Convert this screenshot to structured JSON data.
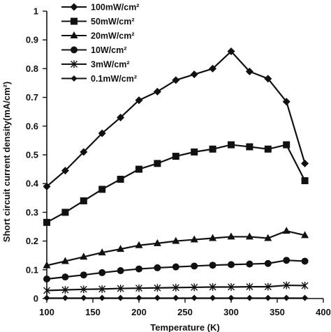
{
  "chart_data": {
    "type": "line",
    "title": "",
    "xlabel": "Temperature (K)",
    "ylabel": "Short circuit current density(mA/cm²)",
    "xlim": [
      100,
      400
    ],
    "ylim": [
      0,
      1
    ],
    "xticks": [
      100,
      150,
      200,
      250,
      300,
      350,
      400
    ],
    "xtick_labels": [
      "100",
      "150",
      "200",
      "250",
      "300",
      "350",
      "400"
    ],
    "yticks": [
      0,
      0.1,
      0.2,
      0.3,
      0.4,
      0.5,
      0.6,
      0.7,
      0.8,
      0.9,
      1
    ],
    "ytick_labels": [
      "0",
      "0.1",
      "0.2",
      "0.3",
      "0.4",
      "0.5",
      "0.6",
      "0.7",
      "0.8",
      "0.9",
      "1"
    ],
    "grid": false,
    "legend_position": "top-left",
    "line_color": "#111111",
    "series": [
      {
        "name": "100mW/cm²",
        "marker": "diamond",
        "x": [
          100,
          120,
          140,
          160,
          180,
          200,
          220,
          240,
          260,
          280,
          300,
          320,
          340,
          360,
          380
        ],
        "y": [
          0.39,
          0.445,
          0.51,
          0.575,
          0.63,
          0.69,
          0.72,
          0.76,
          0.78,
          0.8,
          0.86,
          0.79,
          0.765,
          0.685,
          0.47
        ]
      },
      {
        "name": "50mW/cm²",
        "marker": "square",
        "x": [
          100,
          120,
          140,
          160,
          180,
          200,
          220,
          240,
          260,
          280,
          300,
          320,
          340,
          360,
          380
        ],
        "y": [
          0.265,
          0.3,
          0.34,
          0.38,
          0.415,
          0.45,
          0.47,
          0.495,
          0.51,
          0.52,
          0.535,
          0.528,
          0.52,
          0.535,
          0.41
        ]
      },
      {
        "name": "20mW/cm²",
        "marker": "triangle",
        "x": [
          100,
          120,
          140,
          160,
          180,
          200,
          220,
          240,
          260,
          280,
          300,
          320,
          340,
          360,
          380
        ],
        "y": [
          0.115,
          0.13,
          0.145,
          0.16,
          0.172,
          0.185,
          0.192,
          0.2,
          0.205,
          0.21,
          0.215,
          0.215,
          0.21,
          0.235,
          0.22
        ]
      },
      {
        "name": "10W/cm²",
        "marker": "circle",
        "x": [
          100,
          120,
          140,
          160,
          180,
          200,
          220,
          240,
          260,
          280,
          300,
          320,
          340,
          360,
          380
        ],
        "y": [
          0.068,
          0.075,
          0.082,
          0.09,
          0.097,
          0.103,
          0.107,
          0.11,
          0.113,
          0.116,
          0.118,
          0.12,
          0.122,
          0.133,
          0.13
        ]
      },
      {
        "name": "3mW/cm²",
        "marker": "asterisk",
        "x": [
          100,
          120,
          140,
          160,
          180,
          200,
          220,
          240,
          260,
          280,
          300,
          320,
          340,
          360,
          380
        ],
        "y": [
          0.028,
          0.03,
          0.032,
          0.033,
          0.035,
          0.036,
          0.037,
          0.038,
          0.039,
          0.04,
          0.04,
          0.041,
          0.041,
          0.046,
          0.045
        ]
      },
      {
        "name": "0.1mW/cm²",
        "marker": "diamond-small",
        "x": [
          100,
          120,
          140,
          160,
          180,
          200,
          220,
          240,
          260,
          280,
          300,
          320,
          340,
          360,
          380
        ],
        "y": [
          0.002,
          0.002,
          0.002,
          0.002,
          0.002,
          0.002,
          0.002,
          0.002,
          0.002,
          0.002,
          0.002,
          0.002,
          0.002,
          0.002,
          0.002
        ]
      }
    ]
  }
}
